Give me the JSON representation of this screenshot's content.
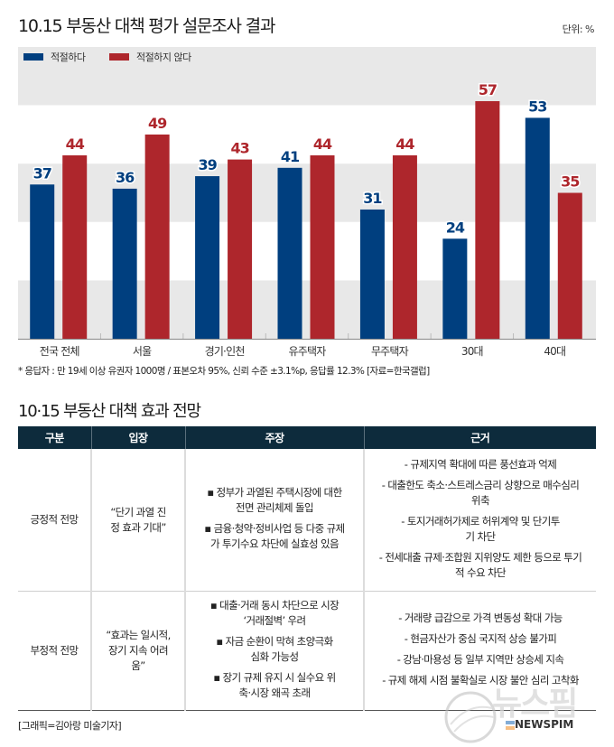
{
  "header": {
    "title": "10.15 부동산 대책 평가 설문조사 결과",
    "unit": "단위: %"
  },
  "chart_data": {
    "type": "bar",
    "title": "10.15 부동산 대책 평가 설문조사 결과",
    "xlabel": "",
    "ylabel": "",
    "unit": "%",
    "ylim": [
      0,
      70
    ],
    "grid": "alternating horizontal bands",
    "legend_position": "top-left",
    "categories": [
      "전국 전체",
      "서울",
      "경기·인천",
      "유주택자",
      "무주택자",
      "30대",
      "40대"
    ],
    "series": [
      {
        "name": "적절하다",
        "color": "#003f7f",
        "values": [
          37,
          36,
          39,
          41,
          31,
          24,
          53
        ]
      },
      {
        "name": "적절하지 않다",
        "color": "#ae262c",
        "values": [
          44,
          49,
          43,
          44,
          44,
          57,
          35
        ]
      }
    ]
  },
  "footnote": "* 응답자 : 만 19세 이상 유권자 1000명 / 표본오차 95%, 신뢰 수준 ±3.1%p, 응답률 12.3%   [자료=한국갤럽]",
  "outlook": {
    "title": "10·15 부동산 대책 효과 전망",
    "headers": [
      "구분",
      "입장",
      "주장",
      "근거"
    ],
    "rows": [
      {
        "category": "긍정적 전망",
        "stance": "“단기 과열 진정 효과 기대”",
        "claims": [
          "▪ 정부가 과열된 주택시장에 대한 전면 관리체제 돌입",
          "▪ 금융·청약·정비사업 등 다중 규제가 투기수요 차단에 실효성 있음"
        ],
        "grounds": [
          "- 규제지역 확대에 따른 풍선효과 억제",
          "- 대출한도 축소·스트레스금리 상향으로 매수심리 위축",
          "- 토지거래허가제로 허위계약 및 단기투기 차단",
          "- 전세대출 규제·조합원 지위양도 제한 등으로 투기적 수요 차단"
        ]
      },
      {
        "category": "부정적 전망",
        "stance": "“효과는 일시적, 장기 지속 어려움”",
        "claims": [
          "▪ 대출·거래 동시 차단으로 시장 ‘거래절벽’ 우려",
          "▪ 자금 순환이 막혀 초양극화 심화 가능성",
          "▪ 장기 규제 유지 시 실수요 위축·시장 왜곡 초래"
        ],
        "grounds": [
          "- 거래량 급감으로 가격 변동성 확대 가능",
          "- 현금자산가 중심 국지적 상승 불가피",
          "- 강남·마용성 등 일부 지역만 상승세 지속",
          "- 규제 해제 시점 불확실로 시장 불안 심리 고착화"
        ]
      }
    ]
  },
  "credit": "[그래픽=김아랑 미술기자]",
  "watermark": {
    "korean": "뉴스핌",
    "english": "NEWSPIM"
  }
}
